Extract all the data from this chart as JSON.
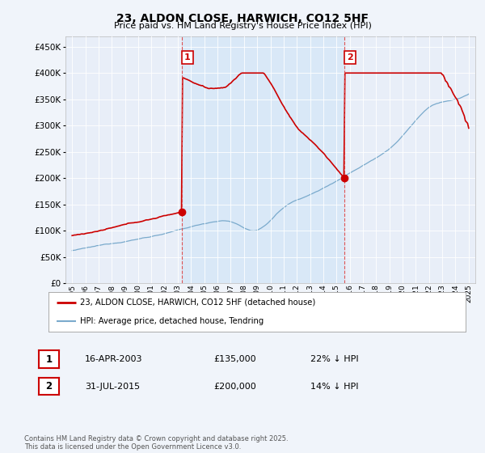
{
  "title": "23, ALDON CLOSE, HARWICH, CO12 5HF",
  "subtitle": "Price paid vs. HM Land Registry's House Price Index (HPI)",
  "ylim": [
    0,
    470000
  ],
  "yticks": [
    0,
    50000,
    100000,
    150000,
    200000,
    250000,
    300000,
    350000,
    400000,
    450000
  ],
  "sale1_date": 2003.29,
  "sale1_price": 135000,
  "sale2_date": 2015.58,
  "sale2_price": 200000,
  "sale_color": "#cc0000",
  "hpi_color": "#7aaacc",
  "hpi_fill_color": "#d0e4f7",
  "vline_color": "#dd4444",
  "legend_label_red": "23, ALDON CLOSE, HARWICH, CO12 5HF (detached house)",
  "legend_label_blue": "HPI: Average price, detached house, Tendring",
  "table_row1": [
    "1",
    "16-APR-2003",
    "£135,000",
    "22% ↓ HPI"
  ],
  "table_row2": [
    "2",
    "31-JUL-2015",
    "£200,000",
    "14% ↓ HPI"
  ],
  "footer": "Contains HM Land Registry data © Crown copyright and database right 2025.\nThis data is licensed under the Open Government Licence v3.0.",
  "bg_color": "#f0f4fa",
  "plot_bg_color": "#e8eef8"
}
